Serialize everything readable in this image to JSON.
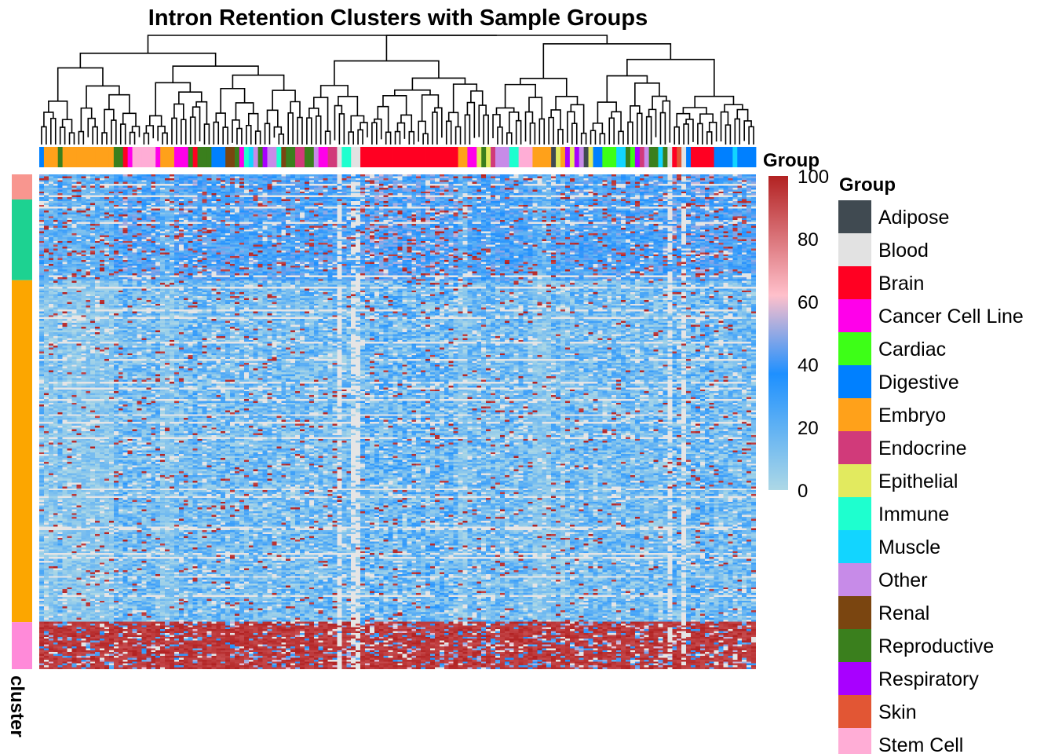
{
  "chart_data": {
    "type": "heatmap",
    "title": "Intron Retention Clusters with Sample Groups",
    "column_annotation_label": "Group",
    "row_annotation_label": "cluster",
    "colorbar": {
      "min": 0,
      "max": 100,
      "ticks": [
        0,
        20,
        40,
        60,
        80,
        100
      ],
      "stops": [
        {
          "value": 0,
          "color": "#ADD8E6"
        },
        {
          "value": 37,
          "color": "#1E90FF"
        },
        {
          "value": 62,
          "color": "#FFC0CB"
        },
        {
          "value": 100,
          "color": "#B22222"
        }
      ]
    },
    "legend": {
      "title": "Group",
      "items": [
        {
          "label": "Adipose",
          "color": "#404A51"
        },
        {
          "label": "Blood",
          "color": "#E2E2E2"
        },
        {
          "label": "Brain",
          "color": "#FF0022"
        },
        {
          "label": "Cancer Cell Line",
          "color": "#FF00EA"
        },
        {
          "label": "Cardiac",
          "color": "#3DFF17"
        },
        {
          "label": "Digestive",
          "color": "#0080FF"
        },
        {
          "label": "Embryo",
          "color": "#FFA11A"
        },
        {
          "label": "Endocrine",
          "color": "#D13A7A"
        },
        {
          "label": "Epithelial",
          "color": "#E2EA5F"
        },
        {
          "label": "Immune",
          "color": "#1EFFCF"
        },
        {
          "label": "Muscle",
          "color": "#12D5FF"
        },
        {
          "label": "Other",
          "color": "#C78BE8"
        },
        {
          "label": "Renal",
          "color": "#7A4510"
        },
        {
          "label": "Reproductive",
          "color": "#3A7F1D"
        },
        {
          "label": "Respiratory",
          "color": "#A800FF"
        },
        {
          "label": "Skin",
          "color": "#E25634"
        },
        {
          "label": "Stem Cell",
          "color": "#FFADD6"
        }
      ]
    },
    "row_clusters": [
      {
        "color": "#F8968F",
        "weight": 32
      },
      {
        "color": "#1DD291",
        "weight": 103
      },
      {
        "color": "#FCA600",
        "weight": 436
      },
      {
        "color": "#FF8AD9",
        "weight": 60
      }
    ],
    "column_groups": [
      "Digestive",
      "Embryo",
      "Embryo",
      "Embryo",
      "Reproductive",
      "Embryo",
      "Embryo",
      "Embryo",
      "Embryo",
      "Embryo",
      "Embryo",
      "Embryo",
      "Embryo",
      "Embryo",
      "Embryo",
      "Embryo",
      "Reproductive",
      "Reproductive",
      "Brain",
      "Cancer Cell Line",
      "Stem Cell",
      "Stem Cell",
      "Stem Cell",
      "Stem Cell",
      "Stem Cell",
      "Cancer Cell Line",
      "Embryo",
      "Embryo",
      "Embryo",
      "Cancer Cell Line",
      "Cancer Cell Line",
      "Cancer Cell Line",
      "Reproductive",
      "Brain",
      "Reproductive",
      "Reproductive",
      "Reproductive",
      "Digestive",
      "Digestive",
      "Digestive",
      "Renal",
      "Renal",
      "Reproductive",
      "Cancer Cell Line",
      "Immune",
      "Muscle",
      "Other",
      "Reproductive",
      "Respiratory",
      "Other",
      "Other",
      "Immune",
      "Renal",
      "Reproductive",
      "Reproductive",
      "Endocrine",
      "Endocrine",
      "Reproductive",
      "Reproductive",
      "Other",
      "Cancer Cell Line",
      "Cancer Cell Line",
      "Endocrine",
      "Endocrine",
      "Blood",
      "Immune",
      "Immune",
      "Blood",
      "Blood",
      "Brain",
      "Brain",
      "Brain",
      "Brain",
      "Brain",
      "Brain",
      "Brain",
      "Brain",
      "Brain",
      "Brain",
      "Brain",
      "Brain",
      "Brain",
      "Brain",
      "Brain",
      "Brain",
      "Brain",
      "Brain",
      "Brain",
      "Brain",
      "Brain",
      "Embryo",
      "Embryo",
      "Cancer Cell Line",
      "Cancer Cell Line",
      "Epithelial",
      "Reproductive",
      "Epithelial",
      "Endocrine",
      "Other",
      "Other",
      "Other",
      "Immune",
      "Immune",
      "Stem Cell",
      "Stem Cell",
      "Stem Cell",
      "Embryo",
      "Embryo",
      "Embryo",
      "Embryo",
      "Adipose",
      "Epithelial",
      "Embryo",
      "Respiratory",
      "Epithelial",
      "Respiratory",
      "Other",
      "Adipose",
      "Epithelial",
      "Digestive",
      "Digestive",
      "Cardiac",
      "Cardiac",
      "Cardiac",
      "Muscle",
      "Muscle",
      "Reproductive",
      "Cardiac",
      "Respiratory",
      "Endocrine",
      "Other",
      "Reproductive",
      "Reproductive",
      "Muscle",
      "Reproductive",
      "Blood",
      "Brain",
      "Skin",
      "Blood",
      "Digestive",
      "Brain",
      "Brain",
      "Brain",
      "Brain",
      "Brain",
      "Digestive",
      "Digestive",
      "Digestive",
      "Digestive",
      "Muscle",
      "Digestive",
      "Digestive",
      "Digestive",
      "Digestive"
    ]
  }
}
